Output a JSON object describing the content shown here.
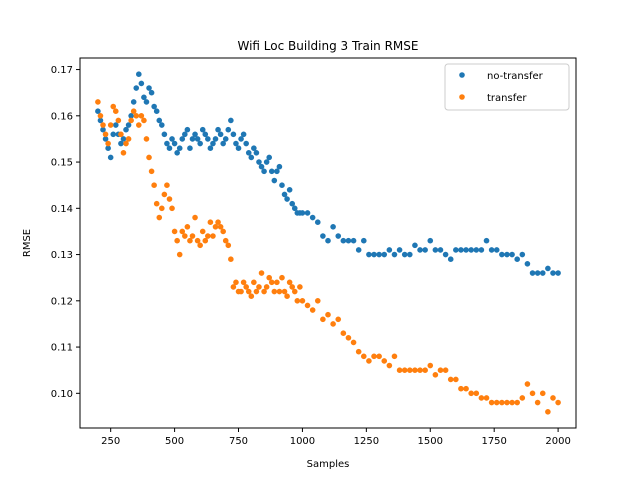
{
  "chart_data": {
    "type": "scatter",
    "title": "Wifi Loc Building 3 Train RMSE",
    "xlabel": "Samples",
    "ylabel": "RMSE",
    "xlim": [
      130,
      2070
    ],
    "ylim": [
      0.0925,
      0.1725
    ],
    "xticks": [
      250,
      500,
      750,
      1000,
      1250,
      1500,
      1750,
      2000
    ],
    "xtick_labels": [
      "250",
      "500",
      "750",
      "1000",
      "1250",
      "1500",
      "1750",
      "2000"
    ],
    "yticks": [
      0.1,
      0.11,
      0.12,
      0.13,
      0.14,
      0.15,
      0.16,
      0.17
    ],
    "ytick_labels": [
      "0.10",
      "0.11",
      "0.12",
      "0.13",
      "0.14",
      "0.15",
      "0.16",
      "0.17"
    ],
    "legend_position": "top-right",
    "series": [
      {
        "name": "no-transfer",
        "color": "#1f77b4",
        "x": [
          200,
          210,
          220,
          230,
          240,
          250,
          260,
          270,
          280,
          290,
          300,
          310,
          320,
          330,
          340,
          350,
          360,
          370,
          380,
          390,
          400,
          410,
          420,
          430,
          440,
          450,
          460,
          470,
          480,
          490,
          500,
          510,
          520,
          530,
          540,
          550,
          560,
          570,
          580,
          590,
          600,
          610,
          620,
          630,
          640,
          650,
          660,
          670,
          680,
          690,
          700,
          710,
          720,
          730,
          740,
          750,
          760,
          770,
          780,
          790,
          800,
          810,
          820,
          830,
          840,
          850,
          860,
          870,
          880,
          890,
          900,
          910,
          920,
          930,
          940,
          950,
          960,
          970,
          980,
          990,
          1000,
          1020,
          1040,
          1060,
          1080,
          1100,
          1120,
          1140,
          1160,
          1180,
          1200,
          1220,
          1240,
          1260,
          1280,
          1300,
          1320,
          1340,
          1360,
          1380,
          1400,
          1420,
          1440,
          1460,
          1480,
          1500,
          1520,
          1540,
          1560,
          1580,
          1600,
          1620,
          1640,
          1660,
          1680,
          1700,
          1720,
          1740,
          1760,
          1780,
          1800,
          1820,
          1840,
          1860,
          1880,
          1900,
          1920,
          1940,
          1960,
          1980,
          2000
        ],
        "values": [
          0.161,
          0.159,
          0.157,
          0.155,
          0.153,
          0.151,
          0.156,
          0.158,
          0.156,
          0.154,
          0.155,
          0.157,
          0.158,
          0.16,
          0.163,
          0.166,
          0.169,
          0.167,
          0.164,
          0.163,
          0.166,
          0.165,
          0.162,
          0.161,
          0.159,
          0.158,
          0.156,
          0.154,
          0.153,
          0.155,
          0.154,
          0.152,
          0.153,
          0.155,
          0.156,
          0.157,
          0.153,
          0.155,
          0.156,
          0.155,
          0.154,
          0.157,
          0.156,
          0.155,
          0.153,
          0.154,
          0.155,
          0.157,
          0.156,
          0.154,
          0.155,
          0.157,
          0.159,
          0.156,
          0.154,
          0.153,
          0.155,
          0.156,
          0.154,
          0.152,
          0.151,
          0.153,
          0.152,
          0.15,
          0.149,
          0.148,
          0.15,
          0.151,
          0.148,
          0.146,
          0.148,
          0.149,
          0.145,
          0.143,
          0.142,
          0.144,
          0.141,
          0.14,
          0.139,
          0.139,
          0.139,
          0.139,
          0.138,
          0.137,
          0.134,
          0.133,
          0.136,
          0.134,
          0.133,
          0.133,
          0.133,
          0.131,
          0.133,
          0.13,
          0.13,
          0.13,
          0.13,
          0.131,
          0.13,
          0.131,
          0.13,
          0.13,
          0.132,
          0.131,
          0.131,
          0.133,
          0.131,
          0.131,
          0.13,
          0.129,
          0.131,
          0.131,
          0.131,
          0.131,
          0.131,
          0.131,
          0.133,
          0.131,
          0.131,
          0.13,
          0.13,
          0.13,
          0.129,
          0.13,
          0.128,
          0.126,
          0.126,
          0.126,
          0.127,
          0.126,
          0.126
        ]
      },
      {
        "name": "transfer",
        "color": "#ff7f0e",
        "x": [
          200,
          210,
          220,
          230,
          240,
          250,
          260,
          270,
          280,
          290,
          300,
          310,
          320,
          330,
          340,
          350,
          360,
          370,
          380,
          390,
          400,
          410,
          420,
          430,
          440,
          450,
          460,
          470,
          480,
          490,
          500,
          510,
          520,
          530,
          540,
          550,
          560,
          570,
          580,
          590,
          600,
          610,
          620,
          630,
          640,
          650,
          660,
          670,
          680,
          690,
          700,
          710,
          720,
          730,
          740,
          750,
          760,
          770,
          780,
          790,
          800,
          810,
          820,
          830,
          840,
          850,
          860,
          870,
          880,
          890,
          900,
          910,
          920,
          930,
          940,
          950,
          960,
          970,
          980,
          990,
          1000,
          1020,
          1040,
          1060,
          1080,
          1100,
          1120,
          1140,
          1160,
          1180,
          1200,
          1220,
          1240,
          1260,
          1280,
          1300,
          1320,
          1340,
          1360,
          1380,
          1400,
          1420,
          1440,
          1460,
          1480,
          1500,
          1520,
          1540,
          1560,
          1580,
          1600,
          1620,
          1640,
          1660,
          1680,
          1700,
          1720,
          1740,
          1760,
          1780,
          1800,
          1820,
          1840,
          1860,
          1880,
          1900,
          1920,
          1940,
          1960,
          1980,
          2000
        ],
        "values": [
          0.163,
          0.16,
          0.158,
          0.156,
          0.154,
          0.158,
          0.162,
          0.161,
          0.159,
          0.156,
          0.152,
          0.154,
          0.155,
          0.159,
          0.161,
          0.16,
          0.158,
          0.16,
          0.159,
          0.155,
          0.151,
          0.148,
          0.145,
          0.141,
          0.138,
          0.14,
          0.143,
          0.145,
          0.142,
          0.14,
          0.135,
          0.133,
          0.13,
          0.135,
          0.134,
          0.136,
          0.133,
          0.134,
          0.138,
          0.133,
          0.132,
          0.135,
          0.133,
          0.134,
          0.137,
          0.134,
          0.136,
          0.137,
          0.136,
          0.135,
          0.133,
          0.132,
          0.129,
          0.123,
          0.124,
          0.122,
          0.122,
          0.124,
          0.123,
          0.122,
          0.121,
          0.124,
          0.122,
          0.123,
          0.126,
          0.122,
          0.123,
          0.125,
          0.124,
          0.122,
          0.124,
          0.122,
          0.125,
          0.122,
          0.121,
          0.124,
          0.123,
          0.122,
          0.12,
          0.123,
          0.12,
          0.119,
          0.118,
          0.12,
          0.116,
          0.117,
          0.115,
          0.116,
          0.113,
          0.112,
          0.111,
          0.109,
          0.108,
          0.107,
          0.108,
          0.108,
          0.107,
          0.106,
          0.108,
          0.105,
          0.105,
          0.105,
          0.105,
          0.105,
          0.105,
          0.106,
          0.104,
          0.105,
          0.105,
          0.103,
          0.103,
          0.101,
          0.101,
          0.1,
          0.1,
          0.099,
          0.099,
          0.098,
          0.098,
          0.098,
          0.098,
          0.098,
          0.098,
          0.099,
          0.102,
          0.1,
          0.098,
          0.1,
          0.096,
          0.099,
          0.098
        ]
      }
    ]
  }
}
